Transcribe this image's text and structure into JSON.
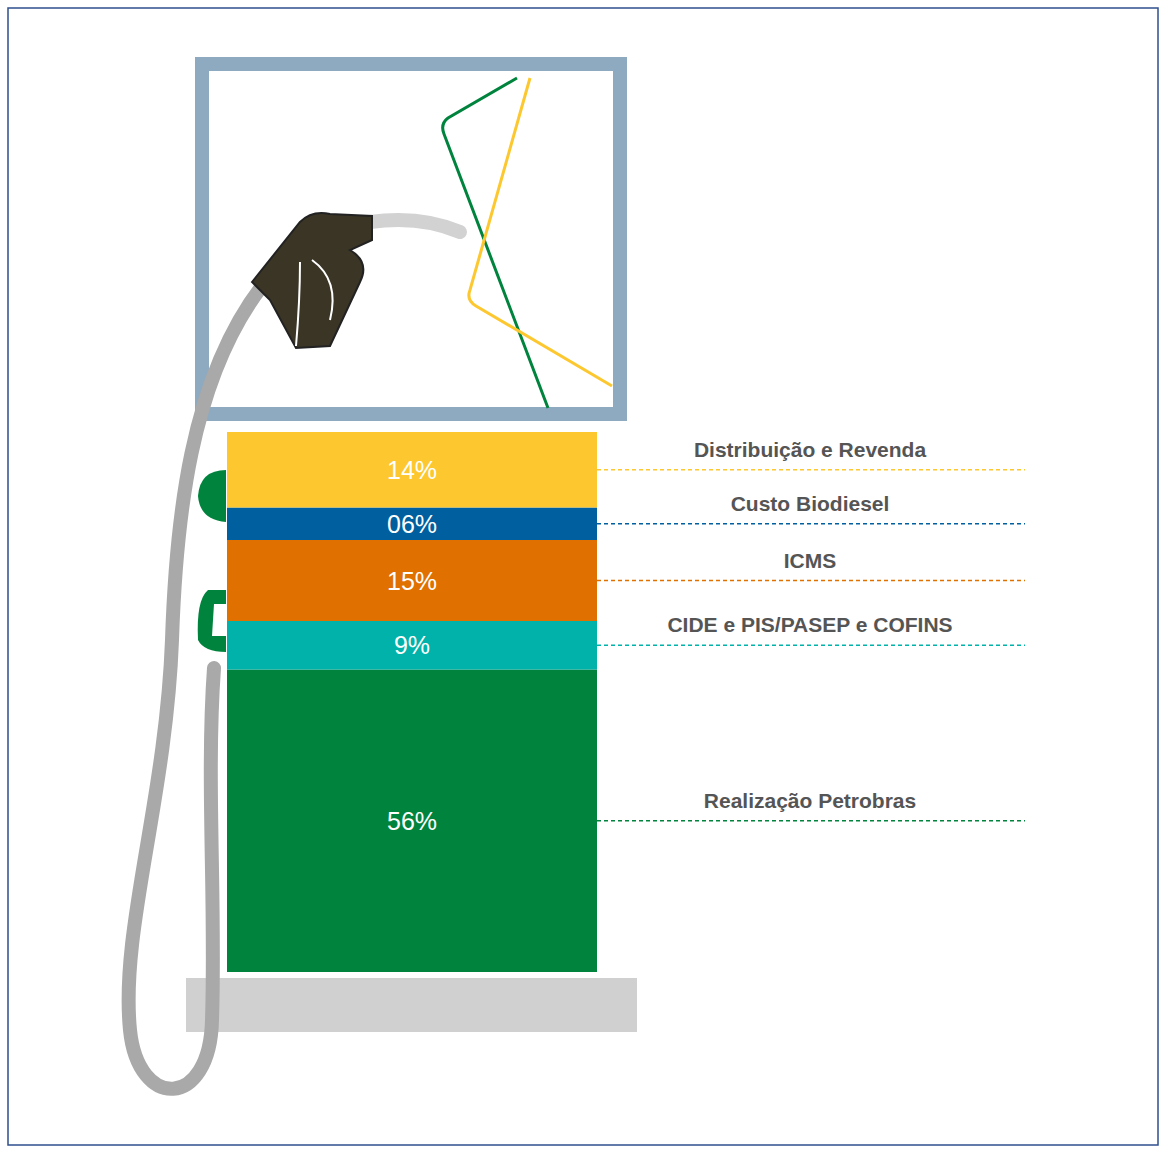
{
  "chart_data": {
    "type": "bar",
    "stacked": true,
    "data_labels": true,
    "tick_labels": false,
    "grid": false,
    "categories": [
      null
    ],
    "ylim": [
      0,
      100
    ],
    "series": [
      {
        "name": "Realização Petrobras",
        "color": "#00843d",
        "values": [
          56
        ],
        "value_labels": [
          "56%"
        ]
      },
      {
        "name": "CIDE e PIS/PASEP e COFINS",
        "color": "#00b2a9",
        "values": [
          9
        ],
        "value_labels": [
          "9%"
        ]
      },
      {
        "name": "ICMS",
        "color": "#e07000",
        "values": [
          15
        ],
        "value_labels": [
          "15%"
        ]
      },
      {
        "name": "Custo Biodiesel",
        "color": "#005f9e",
        "values": [
          6
        ],
        "value_labels": [
          "06%"
        ]
      },
      {
        "name": "Distribuição e Revenda",
        "color": "#fdc82f",
        "values": [
          14
        ],
        "value_labels": [
          "14%"
        ]
      }
    ]
  }
}
